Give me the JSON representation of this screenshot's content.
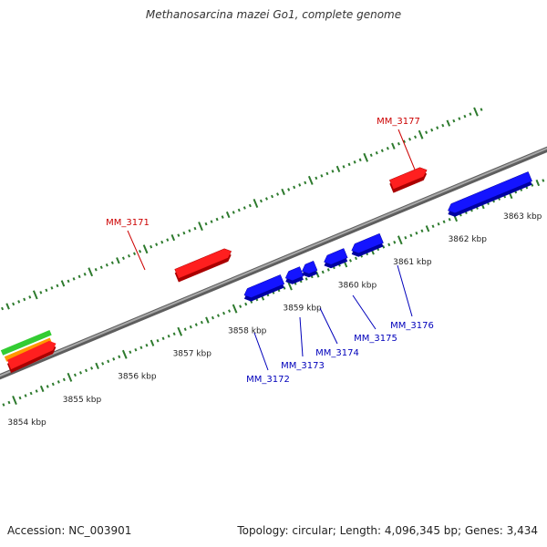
{
  "title": "Methanosarcina mazei Go1, complete genome",
  "footer": {
    "accession": "Accession: NC_003901",
    "summary": "Topology: circular; Length: 4,096,345 bp; Genes: 3,434"
  },
  "colors": {
    "backbone": "#8a8a8a",
    "tick": "#2d7a2d",
    "forward_gene": "#ff1f1f",
    "reverse_gene": "#1414ff",
    "track_green": "#33cc33",
    "track_orange": "#ff9900",
    "label_red": "#cc0000",
    "label_blue": "#0000bb"
  },
  "scale": {
    "unit": "kbp",
    "labels": [
      {
        "kbp": 3854,
        "text": "3854 kbp"
      },
      {
        "kbp": 3855,
        "text": "3855 kbp"
      },
      {
        "kbp": 3856,
        "text": "3856 kbp"
      },
      {
        "kbp": 3857,
        "text": "3857 kbp"
      },
      {
        "kbp": 3858,
        "text": "3858 kbp"
      },
      {
        "kbp": 3859,
        "text": "3859 kbp"
      },
      {
        "kbp": 3860,
        "text": "3860 kbp"
      },
      {
        "kbp": 3861,
        "text": "3861 kbp"
      },
      {
        "kbp": 3862,
        "text": "3862 kbp"
      },
      {
        "kbp": 3863,
        "text": "3863 kbp"
      }
    ]
  },
  "genes": [
    {
      "name": "MM_3171",
      "strand": "+",
      "start_kbp": 3857.3,
      "end_kbp": 3858.2,
      "color": "#ff1f1f",
      "label_color": "#cc0000"
    },
    {
      "name": "MM_3172",
      "strand": "-",
      "start_kbp": 3858.3,
      "end_kbp": 3858.9,
      "color": "#1414ff",
      "label_color": "#0000bb"
    },
    {
      "name": "MM_3173",
      "strand": "-",
      "start_kbp": 3859.05,
      "end_kbp": 3859.25,
      "color": "#1414ff",
      "label_color": "#0000bb"
    },
    {
      "name": "MM_3174",
      "strand": "-",
      "start_kbp": 3859.35,
      "end_kbp": 3859.5,
      "color": "#1414ff",
      "label_color": "#0000bb"
    },
    {
      "name": "MM_3175",
      "strand": "-",
      "start_kbp": 3859.75,
      "end_kbp": 3860.05,
      "color": "#1414ff",
      "label_color": "#0000bb"
    },
    {
      "name": "MM_3176",
      "strand": "-",
      "start_kbp": 3860.25,
      "end_kbp": 3860.7,
      "color": "#1414ff",
      "label_color": "#0000bb"
    },
    {
      "name": "MM_3177",
      "strand": "+",
      "start_kbp": 3861.2,
      "end_kbp": 3861.75,
      "color": "#ff1f1f",
      "label_color": "#cc0000"
    },
    {
      "name": "",
      "strand": "-",
      "start_kbp": 3862.0,
      "end_kbp": 3863.4,
      "color": "#1414ff",
      "label_color": "#0000bb"
    }
  ]
}
